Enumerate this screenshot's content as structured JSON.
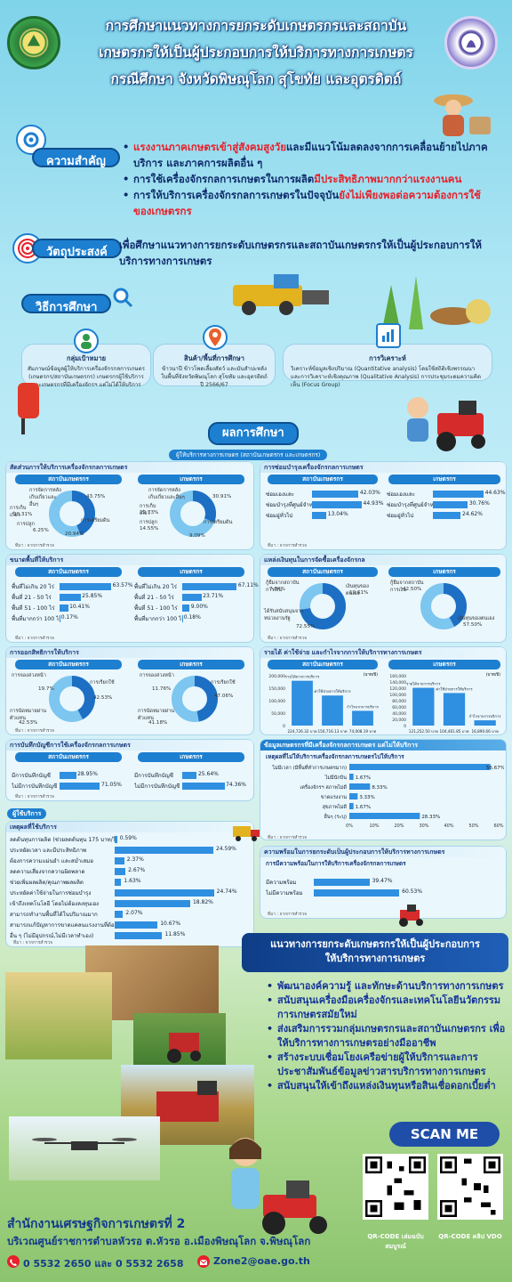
{
  "header": {
    "title_lines": [
      "การศึกษาแนวทางการยกระดับเกษตรกรและสถาบัน",
      "เกษตรกรให้เป็นผู้ประกอบการให้บริการทางการเกษตร",
      "กรณีศึกษา จังหวัดพิษณุโลก สุโขทัย และอุตรดิตถ์"
    ]
  },
  "importance": {
    "label": "ความสำคัญ",
    "bullets": [
      {
        "red": "แรงงานภาคเกษตรเข้าสู่สังคมสูงวัย",
        "text": "และมีแนวโน้มลดลงจากการเคลื่อนย้ายไปภาคบริการ และภาคการผลิตอื่น ๆ"
      },
      {
        "text": "การใช้เครื่องจักรกลการเกษตรในการผลิต",
        "red": "มีประสิทธิภาพมากกว่าแรงงานคน"
      },
      {
        "text": "การให้บริการเครื่องจักรกลการเกษตรในปัจจุบัน",
        "red": "ยังไม่เพียงพอต่อความต้องการใช้ของเกษตรกร"
      }
    ]
  },
  "objective": {
    "label": "วัตถุประสงค์",
    "text": "เพื่อศึกษาแนวทางการยกระดับเกษตรกรและสถาบันเกษตรกรให้เป็นผู้ประกอบการให้บริการทางการเกษตร"
  },
  "method": {
    "label": "วิธีการศึกษา",
    "cards": [
      {
        "title": "กลุ่มเป้าหมาย",
        "body": "สัมภาษณ์ข้อมูลผู้ให้บริการเครื่องจักรกลการเกษตร (เกษตรกร/สถาบันเกษตรกร) เกษตรกรผู้ใช้บริการ และเกษตรกรที่มีเครื่องจักรฯ แต่ไม่ได้ให้บริการ"
      },
      {
        "title": "สินค้า/พื้นที่การศึกษา",
        "body": "ข้าวนาปี ข้าวโพดเลี้ยงสัตว์ และมันสำปะหลัง ในพื้นที่จังหวัดพิษณุโลก สุโขทัย และอุตรดิตถ์ ปี 2566/67"
      },
      {
        "title": "การวิเคราะห์",
        "body": "วิเคราะห์ข้อมูลเชิงปริมาณ (Quantitative analysis) โดยใช้สถิติเชิงพรรณนา และการวิเคราะห์เชิงคุณภาพ (Qualitative Analysis) การประชุมระดมความคิดเห็น (Focus Group)"
      }
    ]
  },
  "results": {
    "label": "ผลการศึกษา",
    "providers_label": "ผู้ให้บริการทางการเกษตร (สถาบันเกษตรกร และเกษตรกร)",
    "group_inst": "สถาบันเกษตรกร",
    "group_farmer": "เกษตรกร",
    "source": "ที่มา : จากการสำรวจ",
    "p1": {
      "title": "สัดส่วนการให้บริการเครื่องจักรกลการเกษตร",
      "inst": [
        {
          "label": "การจัดการหลังเก็บเกี่ยวและอื่นๆ",
          "value": "43.75%"
        },
        {
          "label": "การเก็บเกี่ยว",
          "value": "20.31%"
        },
        {
          "label": "การปลูก",
          "value": "6.25%"
        },
        {
          "label": "การเตรียมดิน",
          "value": "20.94%"
        }
      ],
      "farmer": [
        {
          "label": "การจัดการหลังเก็บเกี่ยวและอื่นๆ",
          "value": "30.91%"
        },
        {
          "label": "การเก็บเกี่ยว",
          "value": "12.73%"
        },
        {
          "label": "การปลูก",
          "value": "14.55%"
        },
        {
          "label": "การเตรียมดิน",
          "value": "9.09%"
        }
      ]
    },
    "p2": {
      "title": "การซ่อมบำรุงเครื่องจักรกลการเกษตร",
      "inst": [
        {
          "label": "ซ่อมเองและ",
          "value": 42.03,
          "text": "42.03%"
        },
        {
          "label": "ซ่อมบำรุงที่ศูนย์จำหน่ายเครื่องจักร",
          "value": 44.93,
          "text": "44.93%"
        },
        {
          "label": "ซ่อมอู่ทั่วไป",
          "value": 13.04,
          "text": "13.04%"
        }
      ],
      "farmer": [
        {
          "label": "ซ่อมเองและ",
          "value": 44.63,
          "text": "44.63%"
        },
        {
          "label": "ซ่อมบำรุงที่ศูนย์จำหน่ายเครื่องจักร",
          "value": 30.76,
          "text": "30.76%"
        },
        {
          "label": "ซ่อมอู่ทั่วไป",
          "value": 24.62,
          "text": "24.62%"
        }
      ]
    },
    "p3": {
      "title": "ขนาดพื้นที่ให้บริการ",
      "inst": [
        {
          "label": "พื้นที่ไม่เกิน 20 ไร่",
          "value": 63.57,
          "text": "63.57%"
        },
        {
          "label": "พื้นที่ 21 - 50 ไร่",
          "value": 25.85,
          "text": "25.85%"
        },
        {
          "label": "พื้นที่ 51 - 100 ไร่",
          "value": 10.41,
          "text": "10.41%"
        },
        {
          "label": "พื้นที่มากกว่า 100 ไร่",
          "value": 0.17,
          "text": "0.17%"
        }
      ],
      "farmer": [
        {
          "label": "พื้นที่ไม่เกิน 20 ไร่",
          "value": 67.11,
          "text": "67.11%"
        },
        {
          "label": "พื้นที่ 21 - 50 ไร่",
          "value": 23.71,
          "text": "23.71%"
        },
        {
          "label": "พื้นที่ 51 - 100 ไร่",
          "value": 9.0,
          "text": "9.00%"
        },
        {
          "label": "พื้นที่มากกว่า 100 ไร่",
          "value": 0.18,
          "text": "0.18%"
        }
      ]
    },
    "p4": {
      "title": "แหล่งเงินทุนในการจัดซื้อเครื่องจักรกล",
      "inst": [
        {
          "label": "กู้ยืมจากสถาบันการเงิน",
          "value": "7.84%"
        },
        {
          "label": "เงินทุนของตนเอง",
          "value": "19.61%"
        },
        {
          "label": "ได้รับสนับสนุนจากหน่วยงานรัฐ",
          "value": "72.55%"
        }
      ],
      "farmer": [
        {
          "label": "กู้ยืมจากสถาบันการเงิน",
          "value": "42.50%"
        },
        {
          "label": "เงินทุนของตนเอง",
          "value": "57.50%"
        }
      ]
    },
    "p5": {
      "title": "การออกสิทธิการให้บริการ",
      "inst": [
        {
          "label": "การจองล่วงหน้า",
          "value": "19.7%"
        },
        {
          "label": "การเรียกใช้",
          "value": "42.53%"
        },
        {
          "label": "การนัดหมายผ่านตัวแทน",
          "value": "42.53%"
        }
      ],
      "farmer": [
        {
          "label": "การจองล่วงหน้า",
          "value": "11.76%"
        },
        {
          "label": "การเรียกใช้",
          "value": "47.06%"
        },
        {
          "label": "การนัดหมายผ่านตัวแทน",
          "value": "41.18%"
        }
      ]
    },
    "p6": {
      "title": "รายได้ ค่าใช้จ่าย และกำไรจากการให้บริการทางการเกษตร",
      "unit": "(บาท/ปี)",
      "categories": [
        "รายได้จากการบริการ",
        "ค่าใช้จ่ายการให้บริการ",
        "กำไรจากการบริการ"
      ],
      "inst": {
        "values": [
          224726.32,
          150716.13,
          74008.19
        ],
        "labels": [
          "224,726.32 บาท",
          "150,716.13 บาท",
          "74,008.19 บาท"
        ],
        "yticks": [
          "200,000",
          "150,000",
          "100,000",
          "50,000",
          "0"
        ],
        "ymax": 250000
      },
      "farmer": {
        "values": [
          121252.5,
          104461.85,
          16890.66
        ],
        "labels": [
          "121,252.50 บาท",
          "104,461.85 บาท",
          "16,890.66 บาท"
        ],
        "yticks": [
          "160,000",
          "140,000",
          "120,000",
          "100,000",
          "80,000",
          "60,000",
          "40,000",
          "20,000",
          "0"
        ],
        "ymax": 160000
      }
    },
    "p7": {
      "title": "การบันทึกบัญชีการใช้เครื่องจักรกลการเกษตร",
      "inst": [
        {
          "label": "มีการบันทึกบัญชี",
          "value": 28.95,
          "text": "28.95%"
        },
        {
          "label": "ไม่มีการบันทึกบัญชี",
          "value": 71.05,
          "text": "71.05%"
        }
      ],
      "farmer": [
        {
          "label": "มีการบันทึกบัญชี",
          "value": 25.64,
          "text": "25.64%"
        },
        {
          "label": "ไม่มีการบันทึกบัญชี",
          "value": 74.36,
          "text": "74.36%"
        }
      ]
    },
    "p8": {
      "title": "ข้อมูลเกษตรกรที่มีเครื่องจักรกลการเกษตร แต่ไม่ให้บริการ",
      "sub": "เหตุผลที่ไม่ให้บริการเครื่องจักรกลการเกษตรไปให้บริการ",
      "items": [
        {
          "label": "ไม่มีเวลา (มีพื้นที่ทำการเกษตรมาก)",
          "value": 56.67,
          "text": "56.67%"
        },
        {
          "label": "ไม่มีนักบิน",
          "value": 1.67,
          "text": "1.67%"
        },
        {
          "label": "เครื่องจักรฯ สภาพไม่ดี",
          "value": 8.33,
          "text": "8.33%"
        },
        {
          "label": "ขาดแรงงาน",
          "value": 3.33,
          "text": "3.33%"
        },
        {
          "label": "สุขภาพไม่ดี",
          "value": 1.67,
          "text": "1.67%"
        },
        {
          "label": "อื่นๆ (ระบุ)",
          "value": 28.33,
          "text": "28.33%"
        }
      ],
      "xticks": [
        "0%",
        "10%",
        "20%",
        "30%",
        "40%",
        "50%",
        "60%"
      ]
    },
    "p9": {
      "title": "ผู้ใช้บริการ",
      "sub": "เหตุผลที่ใช้บริการ",
      "items": [
        {
          "label": "ลดต้นทุนการผลิต (ช่วยลดต้นทุน 175 บาท/ไร่)",
          "value": 0.59,
          "text": "0.59%"
        },
        {
          "label": "ประหยัดเวลา และมีประสิทธิภาพ",
          "value": 24.59,
          "text": "24.59%"
        },
        {
          "label": "ต้องการความแม่นยำ และสม่ำเสมอ",
          "value": 2.37,
          "text": "2.37%"
        },
        {
          "label": "ลดความเสี่ยงจากความผิดพลาด",
          "value": 2.67,
          "text": "2.67%"
        },
        {
          "label": "ช่วยเพิ่มผลผลิต/คุณภาพผลผลิต",
          "value": 1.63,
          "text": "1.63%"
        },
        {
          "label": "ประหยัดค่าใช้จ่ายในการซ่อมบำรุง",
          "value": 24.74,
          "text": "24.74%"
        },
        {
          "label": "เข้าถึงเทคโนโลยี โดยไม่ต้องลงทุนเอง",
          "value": 18.82,
          "text": "18.82%"
        },
        {
          "label": "สามารถทำงานพื้นที่ได้ในปริมาณมาก",
          "value": 2.07,
          "text": "2.07%"
        },
        {
          "label": "สามารถแก้ปัญหาการขาดแคลนแรงงานที่ต้องใช้ได้",
          "value": 10.67,
          "text": "10.67%"
        },
        {
          "label": "อื่น ๆ (ไม่มีอุปกรณ์,ไม่มีเวลาทำเอง)",
          "value": 11.85,
          "text": "11.85%"
        }
      ]
    },
    "p10": {
      "title": "ความพร้อมในการยกระดับเป็นผู้ประกอบการให้บริการทางการเกษตร",
      "sub": "การมีความพร้อมในการให้บริการเครื่องจักรกลการเกษตร",
      "items": [
        {
          "label": "มีความพร้อม",
          "value": 39.47,
          "text": "39.47%"
        },
        {
          "label": "ไม่มีความพร้อม",
          "value": 60.53,
          "text": "60.53%"
        }
      ]
    }
  },
  "guideline": {
    "title_lines": [
      "แนวทางการยกระดับเกษตรกรให้เป็นผู้ประกอบการ",
      "ให้บริการทางการเกษตร"
    ],
    "bullets": [
      "พัฒนาองค์ความรู้ และทักษะด้านบริการทางการเกษตร",
      "สนับสนุนเครื่องมือเครื่องจักรและเทคโนโลยีนวัตกรรมการเกษตรสมัยใหม่",
      "ส่งเสริมการรวมกลุ่มเกษตรกรและสถาบันเกษตรกร เพื่อให้บริการทางการเกษตรอย่างมืออาชีพ",
      "สร้างระบบเชื่อมโยงเครือข่ายผู้ให้บริการและการประชาสัมพันธ์ข้อมูลข่าวสารบริการทางการเกษตร",
      "สนับสนุนให้เข้าถึงแหล่งเงินทุนหรือสินเชื่อดอกเบี้ยต่ำ"
    ]
  },
  "footer": {
    "org": "สำนักงานเศรษฐกิจการเกษตรที่ 2",
    "address": "บริเวณศูนย์ราชการตำบลหัวรอ ต.หัวรอ อ.เมืองพิษณุโลก จ.พิษณุโลก",
    "phone": "0 5532 2650 และ 0 5532 2658",
    "email": "Zone2@oae.go.th",
    "scan": "SCAN ME",
    "qr1": "QR-CODE เล่มฉบับสมบูรณ์",
    "qr2": "QR-CODE คลิป VDO"
  },
  "colors": {
    "accent": "#1d7fd0",
    "title_red": "#e8202a",
    "navy": "#0f2b6b",
    "bar": "#2f8fe0",
    "donut_dark": "#1d6fc4",
    "donut_light": "#7cc6ef"
  }
}
